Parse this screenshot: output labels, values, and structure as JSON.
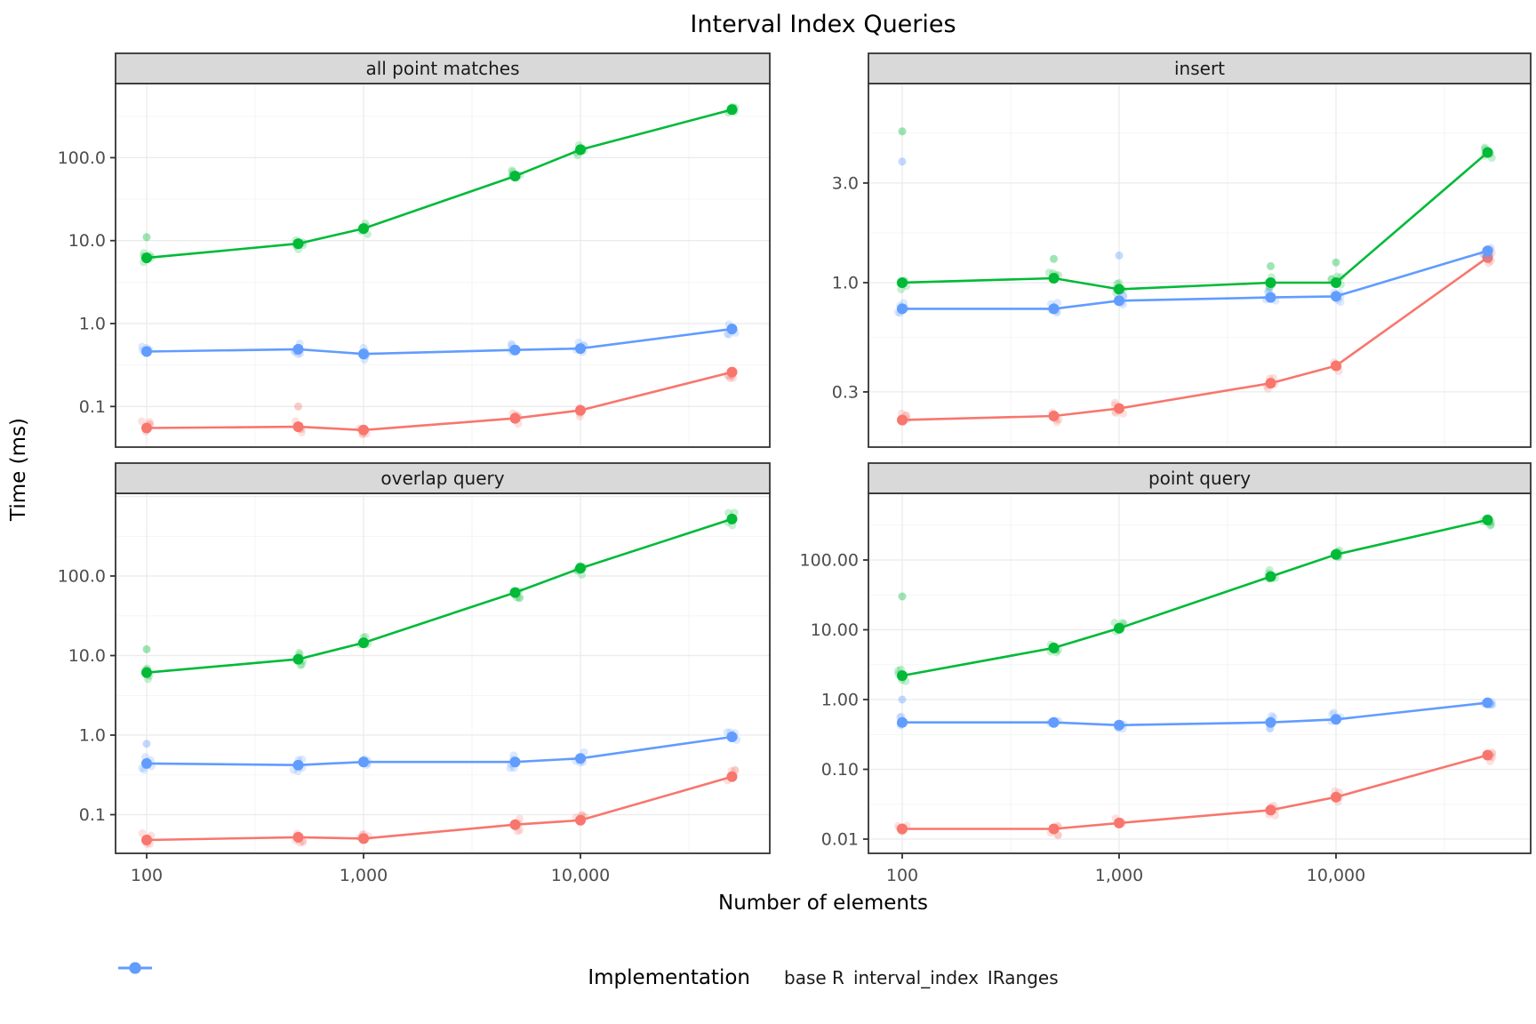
{
  "title": "Interval Index Queries",
  "x_axis_title": "Number of elements",
  "y_axis_title": "Time (ms)",
  "legend": {
    "title": "Implementation",
    "items": [
      {
        "label": "base R",
        "color": "#F8766D"
      },
      {
        "label": "interval_index",
        "color": "#00BA38"
      },
      {
        "label": "IRanges",
        "color": "#619CFF"
      }
    ]
  },
  "style": {
    "strip_bg": "#D9D9D9",
    "panel_border": "#333333",
    "grid_major": "#EBEBEB",
    "grid_minor": "#F4F4F4",
    "tick_label_color": "#4d4d4d"
  },
  "chart_data": [
    {
      "type": "line",
      "facet": "all point matches",
      "x": [
        100,
        500,
        1000,
        5000,
        10000,
        50000
      ],
      "x_tick_labels": [
        "100",
        "1,000",
        "10,000"
      ],
      "x_tick_values": [
        100,
        1000,
        10000
      ],
      "y_tick_labels": [
        "100.0",
        "10.0",
        "1.0",
        "0.1"
      ],
      "y_tick_values": [
        100,
        10,
        1,
        0.1
      ],
      "series": [
        {
          "name": "base R",
          "values": [
            0.055,
            0.057,
            0.052,
            0.072,
            0.09,
            0.26
          ]
        },
        {
          "name": "interval_index",
          "values": [
            6.2,
            9.2,
            14,
            60,
            125,
            380
          ]
        },
        {
          "name": "IRanges",
          "values": [
            0.46,
            0.49,
            0.43,
            0.48,
            0.5,
            0.86
          ]
        }
      ],
      "outliers": [
        {
          "series": "interval_index",
          "x": 100,
          "y": 11
        },
        {
          "series": "base R",
          "x": 500,
          "y": 0.1
        }
      ]
    },
    {
      "type": "line",
      "facet": "insert",
      "x": [
        100,
        500,
        1000,
        5000,
        10000,
        50000
      ],
      "x_tick_labels": [
        "100",
        "1,000",
        "10,000"
      ],
      "x_tick_values": [
        100,
        1000,
        10000
      ],
      "y_tick_labels": [
        "3.0",
        "1.0",
        "0.3"
      ],
      "y_tick_values": [
        3,
        1,
        0.3
      ],
      "series": [
        {
          "name": "base R",
          "values": [
            0.22,
            0.23,
            0.25,
            0.33,
            0.4,
            1.32
          ]
        },
        {
          "name": "interval_index",
          "values": [
            1.0,
            1.05,
            0.93,
            1.0,
            1.0,
            4.2
          ]
        },
        {
          "name": "IRanges",
          "values": [
            0.75,
            0.75,
            0.82,
            0.85,
            0.86,
            1.42
          ]
        }
      ],
      "outliers": [
        {
          "series": "interval_index",
          "x": 100,
          "y": 5.3
        },
        {
          "series": "IRanges",
          "x": 100,
          "y": 3.8
        },
        {
          "series": "interval_index",
          "x": 500,
          "y": 1.3
        },
        {
          "series": "IRanges",
          "x": 1000,
          "y": 1.35
        },
        {
          "series": "interval_index",
          "x": 5000,
          "y": 1.2
        },
        {
          "series": "interval_index",
          "x": 10000,
          "y": 1.25
        }
      ]
    },
    {
      "type": "line",
      "facet": "overlap query",
      "x": [
        100,
        500,
        1000,
        5000,
        10000,
        50000
      ],
      "x_tick_labels": [
        "100",
        "1,000",
        "10,000"
      ],
      "x_tick_values": [
        100,
        1000,
        10000
      ],
      "y_tick_labels": [
        "100.0",
        "10.0",
        "1.0",
        "0.1"
      ],
      "y_tick_values": [
        100,
        10,
        1,
        0.1
      ],
      "series": [
        {
          "name": "base R",
          "values": [
            0.048,
            0.052,
            0.05,
            0.075,
            0.085,
            0.3
          ]
        },
        {
          "name": "interval_index",
          "values": [
            6.1,
            9.0,
            14.5,
            62,
            125,
            520
          ]
        },
        {
          "name": "IRanges",
          "values": [
            0.44,
            0.42,
            0.46,
            0.46,
            0.51,
            0.95
          ]
        }
      ],
      "outliers": [
        {
          "series": "interval_index",
          "x": 100,
          "y": 12
        },
        {
          "series": "IRanges",
          "x": 100,
          "y": 0.78
        }
      ]
    },
    {
      "type": "line",
      "facet": "point query",
      "x": [
        100,
        500,
        1000,
        5000,
        10000,
        50000
      ],
      "x_tick_labels": [
        "100",
        "1,000",
        "10,000"
      ],
      "x_tick_values": [
        100,
        1000,
        10000
      ],
      "y_tick_labels": [
        "100.00",
        "10.00",
        "1.00",
        "0.10",
        "0.01"
      ],
      "y_tick_values": [
        100,
        10,
        1,
        0.1,
        0.01
      ],
      "series": [
        {
          "name": "base R",
          "values": [
            0.014,
            0.014,
            0.017,
            0.026,
            0.04,
            0.16
          ]
        },
        {
          "name": "interval_index",
          "values": [
            2.2,
            5.5,
            10.5,
            58,
            120,
            375
          ]
        },
        {
          "name": "IRanges",
          "values": [
            0.47,
            0.47,
            0.43,
            0.47,
            0.52,
            0.9
          ]
        }
      ],
      "outliers": [
        {
          "series": "interval_index",
          "x": 100,
          "y": 30
        },
        {
          "series": "IRanges",
          "x": 100,
          "y": 1.0
        }
      ]
    }
  ]
}
